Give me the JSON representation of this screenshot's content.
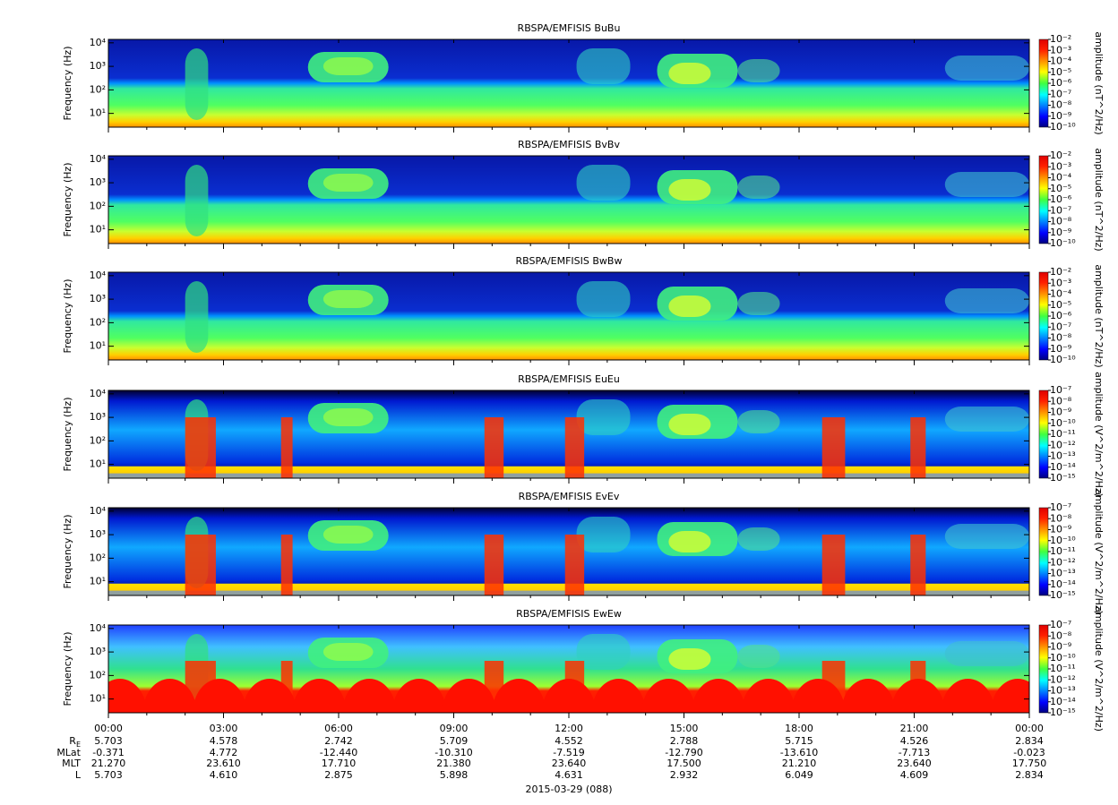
{
  "chart_data": [
    {
      "type": "heatmap",
      "title": "RBSPA/EMFISIS  BuBu",
      "y_label": "Frequency (Hz)",
      "yscale": "log",
      "ylim": [
        2.6,
        14000
      ],
      "yticks": [
        {
          "value": 10,
          "label": "10¹"
        },
        {
          "value": 100,
          "label": "10²"
        },
        {
          "value": 1000,
          "label": "10³"
        },
        {
          "value": 10000,
          "label": "10⁴"
        }
      ],
      "colorbar": {
        "label": "amplitude (nT^2/Hz)",
        "scale": "log",
        "clim": [
          1e-10,
          0.01
        ],
        "ticks": [
          {
            "value": 0.01,
            "label": "10⁻²"
          },
          {
            "value": 0.001,
            "label": "10⁻³"
          },
          {
            "value": 0.0001,
            "label": "10⁻⁴"
          },
          {
            "value": 1e-05,
            "label": "10⁻⁵"
          },
          {
            "value": 1e-06,
            "label": "10⁻⁶"
          },
          {
            "value": 1e-07,
            "label": "10⁻⁷"
          },
          {
            "value": 1e-08,
            "label": "10⁻⁸"
          },
          {
            "value": 1e-09,
            "label": "10⁻⁹"
          },
          {
            "value": 1e-10,
            "label": "10⁻¹⁰"
          }
        ]
      }
    },
    {
      "type": "heatmap",
      "title": "RBSPA/EMFISIS  BvBv",
      "y_label": "Frequency (Hz)",
      "yscale": "log",
      "ylim": [
        2.6,
        14000
      ],
      "yticks": [
        {
          "value": 10,
          "label": "10¹"
        },
        {
          "value": 100,
          "label": "10²"
        },
        {
          "value": 1000,
          "label": "10³"
        },
        {
          "value": 10000,
          "label": "10⁴"
        }
      ],
      "colorbar": {
        "label": "amplitude (nT^2/Hz)",
        "scale": "log",
        "clim": [
          1e-10,
          0.01
        ],
        "ticks": [
          {
            "value": 0.01,
            "label": "10⁻²"
          },
          {
            "value": 0.001,
            "label": "10⁻³"
          },
          {
            "value": 0.0001,
            "label": "10⁻⁴"
          },
          {
            "value": 1e-05,
            "label": "10⁻⁵"
          },
          {
            "value": 1e-06,
            "label": "10⁻⁶"
          },
          {
            "value": 1e-07,
            "label": "10⁻⁷"
          },
          {
            "value": 1e-08,
            "label": "10⁻⁸"
          },
          {
            "value": 1e-09,
            "label": "10⁻⁹"
          },
          {
            "value": 1e-10,
            "label": "10⁻¹⁰"
          }
        ]
      }
    },
    {
      "type": "heatmap",
      "title": "RBSPA/EMFISIS  BwBw",
      "y_label": "Frequency (Hz)",
      "yscale": "log",
      "ylim": [
        2.6,
        14000
      ],
      "yticks": [
        {
          "value": 10,
          "label": "10¹"
        },
        {
          "value": 100,
          "label": "10²"
        },
        {
          "value": 1000,
          "label": "10³"
        },
        {
          "value": 10000,
          "label": "10⁴"
        }
      ],
      "colorbar": {
        "label": "amplitude (nT^2/Hz)",
        "scale": "log",
        "clim": [
          1e-10,
          0.01
        ],
        "ticks": [
          {
            "value": 0.01,
            "label": "10⁻²"
          },
          {
            "value": 0.001,
            "label": "10⁻³"
          },
          {
            "value": 0.0001,
            "label": "10⁻⁴"
          },
          {
            "value": 1e-05,
            "label": "10⁻⁵"
          },
          {
            "value": 1e-06,
            "label": "10⁻⁶"
          },
          {
            "value": 1e-07,
            "label": "10⁻⁷"
          },
          {
            "value": 1e-08,
            "label": "10⁻⁸"
          },
          {
            "value": 1e-09,
            "label": "10⁻⁹"
          },
          {
            "value": 1e-10,
            "label": "10⁻¹⁰"
          }
        ]
      }
    },
    {
      "type": "heatmap",
      "title": "RBSPA/EMFISIS  EuEu",
      "y_label": "Frequency (Hz)",
      "yscale": "log",
      "ylim": [
        2.6,
        14000
      ],
      "yticks": [
        {
          "value": 10,
          "label": "10¹"
        },
        {
          "value": 100,
          "label": "10²"
        },
        {
          "value": 1000,
          "label": "10³"
        },
        {
          "value": 10000,
          "label": "10⁴"
        }
      ],
      "colorbar": {
        "label": "amplitude (V^2/m^2/Hz)",
        "scale": "log",
        "clim": [
          1e-15,
          1e-07
        ],
        "ticks": [
          {
            "value": 1e-07,
            "label": "10⁻⁷"
          },
          {
            "value": 1e-08,
            "label": "10⁻⁸"
          },
          {
            "value": 1e-09,
            "label": "10⁻⁹"
          },
          {
            "value": 1e-10,
            "label": "10⁻¹⁰"
          },
          {
            "value": 1e-11,
            "label": "10⁻¹¹"
          },
          {
            "value": 1e-12,
            "label": "10⁻¹²"
          },
          {
            "value": 1e-13,
            "label": "10⁻¹³"
          },
          {
            "value": 1e-14,
            "label": "10⁻¹⁴"
          },
          {
            "value": 1e-15,
            "label": "10⁻¹⁵"
          }
        ]
      }
    },
    {
      "type": "heatmap",
      "title": "RBSPA/EMFISIS  EvEv",
      "y_label": "Frequency (Hz)",
      "yscale": "log",
      "ylim": [
        2.6,
        14000
      ],
      "yticks": [
        {
          "value": 10,
          "label": "10¹"
        },
        {
          "value": 100,
          "label": "10²"
        },
        {
          "value": 1000,
          "label": "10³"
        },
        {
          "value": 10000,
          "label": "10⁴"
        }
      ],
      "colorbar": {
        "label": "amplitude (V^2/m^2/Hz)",
        "scale": "log",
        "clim": [
          1e-15,
          1e-07
        ],
        "ticks": [
          {
            "value": 1e-07,
            "label": "10⁻⁷"
          },
          {
            "value": 1e-08,
            "label": "10⁻⁸"
          },
          {
            "value": 1e-09,
            "label": "10⁻⁹"
          },
          {
            "value": 1e-10,
            "label": "10⁻¹⁰"
          },
          {
            "value": 1e-11,
            "label": "10⁻¹¹"
          },
          {
            "value": 1e-12,
            "label": "10⁻¹²"
          },
          {
            "value": 1e-13,
            "label": "10⁻¹³"
          },
          {
            "value": 1e-14,
            "label": "10⁻¹⁴"
          },
          {
            "value": 1e-15,
            "label": "10⁻¹⁵"
          }
        ]
      }
    },
    {
      "type": "heatmap",
      "title": "RBSPA/EMFISIS  EwEw",
      "y_label": "Frequency (Hz)",
      "yscale": "log",
      "ylim": [
        2.6,
        14000
      ],
      "yticks": [
        {
          "value": 10,
          "label": "10¹"
        },
        {
          "value": 100,
          "label": "10²"
        },
        {
          "value": 1000,
          "label": "10³"
        },
        {
          "value": 10000,
          "label": "10⁴"
        }
      ],
      "colorbar": {
        "label": "amplitude (V^2/m^2/Hz)",
        "scale": "log",
        "clim": [
          1e-15,
          1e-07
        ],
        "ticks": [
          {
            "value": 1e-07,
            "label": "10⁻⁷"
          },
          {
            "value": 1e-08,
            "label": "10⁻⁸"
          },
          {
            "value": 1e-09,
            "label": "10⁻⁹"
          },
          {
            "value": 1e-10,
            "label": "10⁻¹⁰"
          },
          {
            "value": 1e-11,
            "label": "10⁻¹¹"
          },
          {
            "value": 1e-12,
            "label": "10⁻¹²"
          },
          {
            "value": 1e-13,
            "label": "10⁻¹³"
          },
          {
            "value": 1e-14,
            "label": "10⁻¹⁴"
          },
          {
            "value": 1e-15,
            "label": "10⁻¹⁵"
          }
        ]
      }
    }
  ],
  "time_axis": {
    "xlim": [
      0,
      24
    ],
    "xticks": [
      {
        "value": 0,
        "label": "00:00"
      },
      {
        "value": 3,
        "label": "03:00"
      },
      {
        "value": 6,
        "label": "06:00"
      },
      {
        "value": 9,
        "label": "09:00"
      },
      {
        "value": 12,
        "label": "12:00"
      },
      {
        "value": 15,
        "label": "15:00"
      },
      {
        "value": 18,
        "label": "18:00"
      },
      {
        "value": 21,
        "label": "21:00"
      },
      {
        "value": 24,
        "label": "00:00"
      }
    ],
    "date": "2015-03-29 (088)"
  },
  "ephemeris": [
    {
      "name": "R",
      "name_sub": "E",
      "values": [
        "5.703",
        "4.578",
        "2.742",
        "5.709",
        "4.552",
        "2.788",
        "5.715",
        "4.526",
        "2.834"
      ]
    },
    {
      "name": "MLat",
      "values": [
        "-0.371",
        "4.772",
        "-12.440",
        "-10.310",
        "-7.519",
        "-12.790",
        "-13.610",
        "-7.713",
        "-0.023"
      ]
    },
    {
      "name": "MLT",
      "values": [
        "21.270",
        "23.610",
        "17.710",
        "21.380",
        "23.640",
        "17.500",
        "21.210",
        "23.640",
        "17.750"
      ]
    },
    {
      "name": "L",
      "values": [
        "5.703",
        "4.610",
        "2.875",
        "5.898",
        "4.631",
        "2.932",
        "6.049",
        "4.609",
        "2.834"
      ]
    }
  ]
}
